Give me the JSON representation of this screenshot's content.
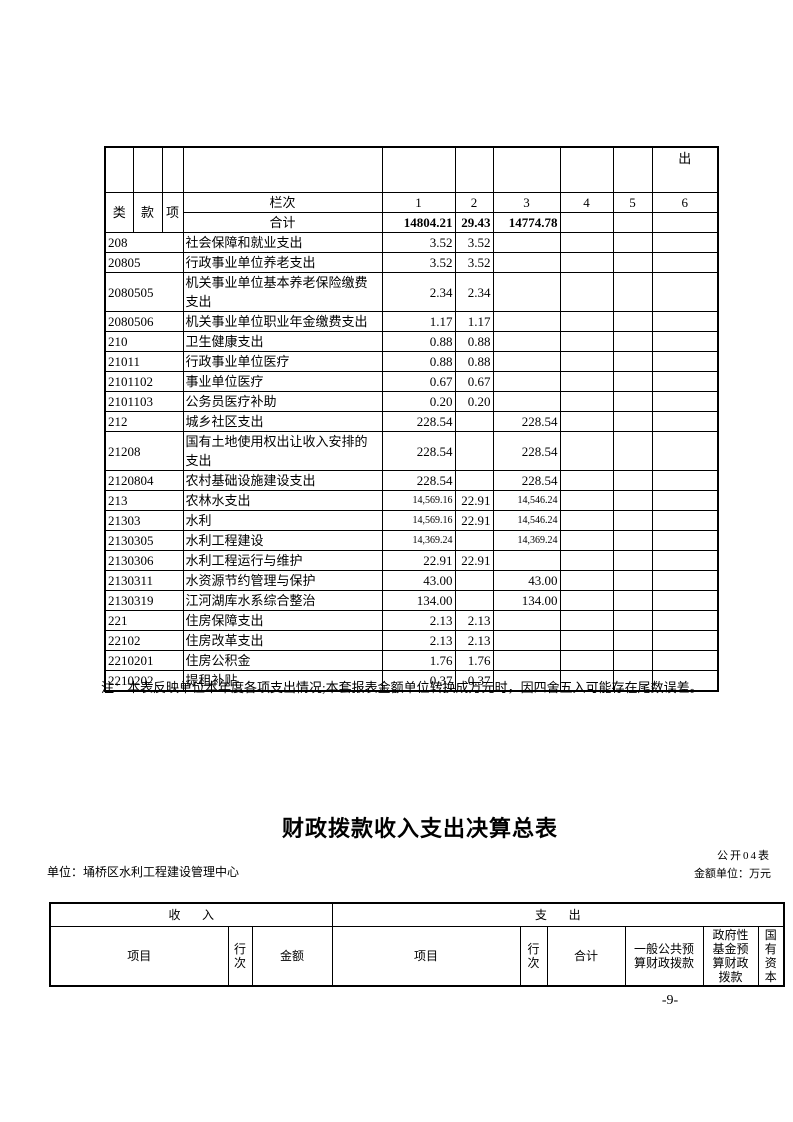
{
  "expenditure_table": {
    "corner_header": "出",
    "class_headers": [
      "类",
      "款",
      "项"
    ],
    "lanci_label": "栏次",
    "col_numbers": [
      "1",
      "2",
      "3",
      "4",
      "5",
      "6"
    ],
    "total_row": {
      "label": "合计",
      "c1": "14804.21",
      "c2": "29.43",
      "c3": "14774.78"
    },
    "rows": [
      {
        "code": "208",
        "desc": "社会保障和就业支出",
        "c1": "3.52",
        "c2": "3.52",
        "c3": ""
      },
      {
        "code": "20805",
        "desc": "行政事业单位养老支出",
        "c1": "3.52",
        "c2": "3.52",
        "c3": ""
      },
      {
        "code": "2080505",
        "desc": "机关事业单位基本养老保险缴费支出",
        "c1": "2.34",
        "c2": "2.34",
        "c3": ""
      },
      {
        "code": "2080506",
        "desc": "机关事业单位职业年金缴费支出",
        "c1": "1.17",
        "c2": "1.17",
        "c3": ""
      },
      {
        "code": "210",
        "desc": "卫生健康支出",
        "c1": "0.88",
        "c2": "0.88",
        "c3": ""
      },
      {
        "code": "21011",
        "desc": "行政事业单位医疗",
        "c1": "0.88",
        "c2": "0.88",
        "c3": ""
      },
      {
        "code": "2101102",
        "desc": "事业单位医疗",
        "c1": "0.67",
        "c2": "0.67",
        "c3": ""
      },
      {
        "code": "2101103",
        "desc": "公务员医疗补助",
        "c1": "0.20",
        "c2": "0.20",
        "c3": ""
      },
      {
        "code": "212",
        "desc": "城乡社区支出",
        "c1": "228.54",
        "c2": "",
        "c3": "228.54"
      },
      {
        "code": "21208",
        "desc": "国有土地使用权出让收入安排的支出",
        "c1": "228.54",
        "c2": "",
        "c3": "228.54"
      },
      {
        "code": "2120804",
        "desc": "农村基础设施建设支出",
        "c1": "228.54",
        "c2": "",
        "c3": "228.54"
      },
      {
        "code": "213",
        "desc": "农林水支出",
        "c1": "14,569.16",
        "c2": "22.91",
        "c3": "14,546.24"
      },
      {
        "code": "21303",
        "desc": "水利",
        "c1": "14,569.16",
        "c2": "22.91",
        "c3": "14,546.24"
      },
      {
        "code": "2130305",
        "desc": "水利工程建设",
        "c1": "14,369.24",
        "c2": "",
        "c3": "14,369.24"
      },
      {
        "code": "2130306",
        "desc": "水利工程运行与维护",
        "c1": "22.91",
        "c2": "22.91",
        "c3": ""
      },
      {
        "code": "2130311",
        "desc": "水资源节约管理与保护",
        "c1": "43.00",
        "c2": "",
        "c3": "43.00"
      },
      {
        "code": "2130319",
        "desc": "江河湖库水系综合整治",
        "c1": "134.00",
        "c2": "",
        "c3": "134.00"
      },
      {
        "code": "221",
        "desc": "住房保障支出",
        "c1": "2.13",
        "c2": "2.13",
        "c3": ""
      },
      {
        "code": "22102",
        "desc": "住房改革支出",
        "c1": "2.13",
        "c2": "2.13",
        "c3": ""
      },
      {
        "code": "2210201",
        "desc": "住房公积金",
        "c1": "1.76",
        "c2": "1.76",
        "c3": ""
      },
      {
        "code": "2210202",
        "desc": "提租补贴",
        "c1": "0.37",
        "c2": "0.37",
        "c3": ""
      }
    ],
    "note": "注：本表反映单位本年度各项支出情况;本套报表金额单位转换成万元时，因四舍五入可能存在尾数误差。"
  },
  "summary_section": {
    "title": "财政拨款收入支出决算总表",
    "table_code": "公开04表",
    "unit_label": "单位：埇桥区水利工程建设管理中心",
    "amount_unit": "金额单位：万元",
    "table": {
      "income_header": "收入",
      "expense_header": "支出",
      "income_cols": [
        "项目",
        "行次",
        "金额"
      ],
      "expense_cols": [
        "项目",
        "行次",
        "合计",
        "一般公共预算财政拨款",
        "政府性基金预算财政拨款",
        "国有资本"
      ]
    }
  },
  "page": {
    "page_number": "-9-"
  }
}
